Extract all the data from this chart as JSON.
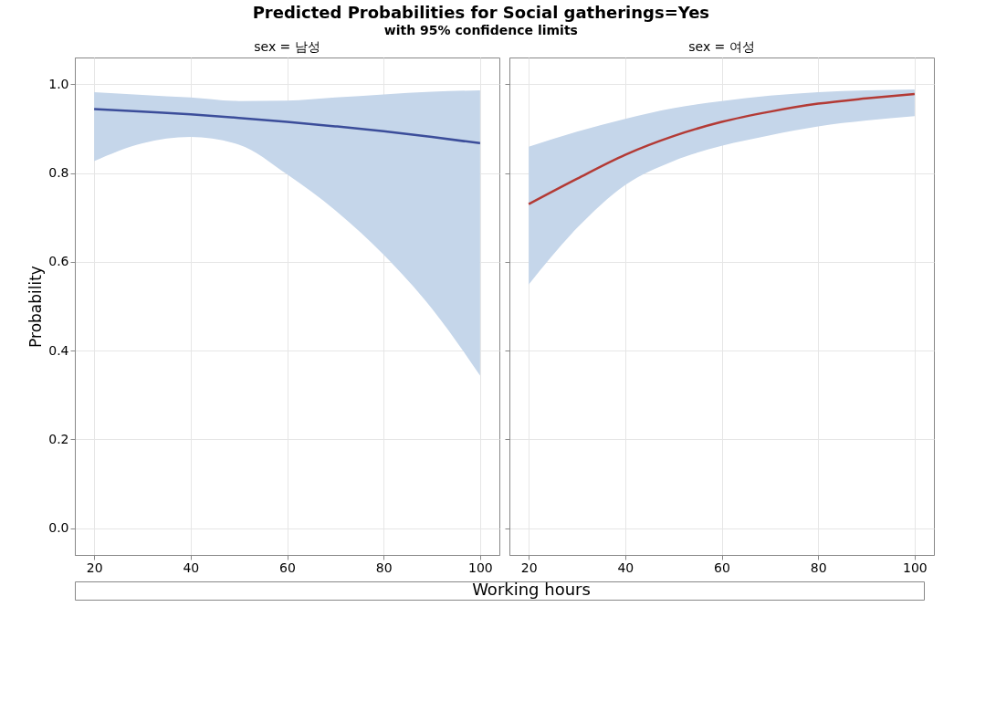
{
  "chart_data": [
    {
      "type": "line",
      "title": "Predicted Probabilities for Social gatherings=Yes",
      "subtitle": "with 95% confidence limits",
      "annotations": [
        "sex = 남성"
      ],
      "xlabel": "Working hours",
      "ylabel": "Probability",
      "x": [
        20,
        30,
        40,
        50,
        60,
        70,
        80,
        90,
        100
      ],
      "series": [
        {
          "color": "#3b4d9a",
          "values": [
            0.944,
            0.938,
            0.932,
            0.924,
            0.915,
            0.905,
            0.894,
            0.881,
            0.867
          ],
          "lower": [
            0.827,
            0.867,
            0.881,
            0.864,
            0.797,
            0.716,
            0.616,
            0.495,
            0.344
          ],
          "upper": [
            0.982,
            0.976,
            0.97,
            0.962,
            0.963,
            0.97,
            0.977,
            0.983,
            0.986
          ]
        }
      ],
      "xlim": [
        16,
        104
      ],
      "ylim": [
        -0.06,
        1.06
      ],
      "xticks": [
        20,
        40,
        60,
        80,
        100
      ],
      "yticks": [
        {
          "value": 0,
          "label": "0.0"
        },
        0.2,
        0.4,
        0.6,
        0.8,
        {
          "value": 1,
          "label": "1.0"
        }
      ],
      "grid": true
    },
    {
      "type": "line",
      "annotations": [
        "sex = 여성"
      ],
      "x": [
        20,
        30,
        40,
        50,
        60,
        70,
        80,
        90,
        100
      ],
      "series": [
        {
          "color": "#b33a35",
          "values": [
            0.73,
            0.787,
            0.841,
            0.883,
            0.915,
            0.938,
            0.956,
            0.968,
            0.978
          ],
          "lower": [
            0.549,
            0.676,
            0.773,
            0.827,
            0.861,
            0.885,
            0.905,
            0.918,
            0.928
          ],
          "upper": [
            0.859,
            0.893,
            0.922,
            0.946,
            0.962,
            0.974,
            0.982,
            0.986,
            0.988
          ]
        }
      ],
      "xlim": [
        16,
        104
      ],
      "ylim": [
        -0.06,
        1.06
      ],
      "xticks": [
        20,
        40,
        60,
        80,
        100
      ],
      "yticks": [
        {
          "value": 0,
          "label": null
        },
        {
          "value": 0.2,
          "label": null
        },
        {
          "value": 0.4,
          "label": null
        },
        {
          "value": 0.6,
          "label": null
        },
        {
          "value": 0.8,
          "label": null
        },
        {
          "value": 1,
          "label": null
        }
      ],
      "grid": true,
      "tick_labels": "x"
    }
  ]
}
